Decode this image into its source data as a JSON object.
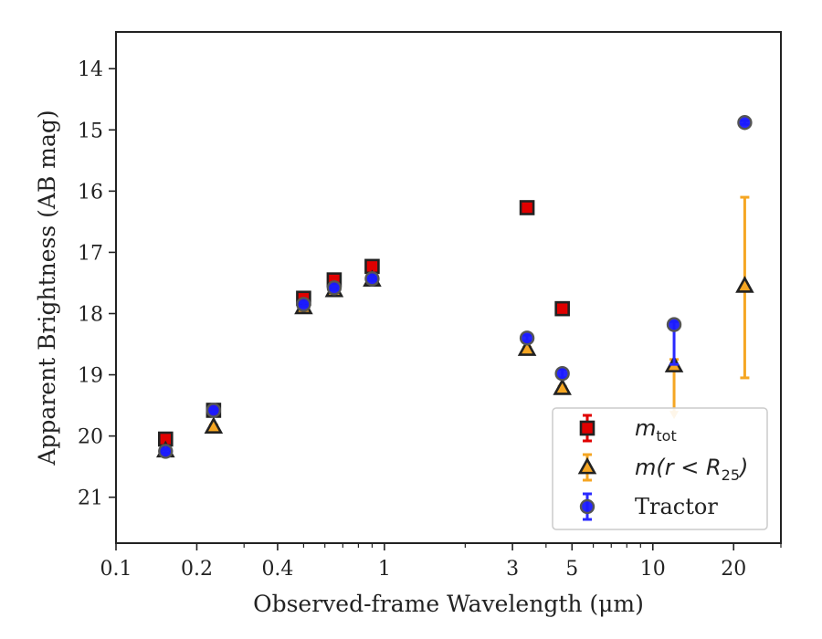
{
  "chart_data": {
    "type": "scatter",
    "title": "",
    "xlabel": "Observed-frame Wavelength (μm)",
    "ylabel": "Apparent Brightness (AB mag)",
    "xscale": "log",
    "xlim": [
      0.1,
      30
    ],
    "ylim": [
      21.75,
      13.4
    ],
    "y_inverted": true,
    "xticks": [
      0.1,
      0.2,
      0.4,
      1,
      3,
      5,
      10,
      20
    ],
    "xtick_labels": [
      "0.1",
      "0.2",
      "0.4",
      "1",
      "3",
      "5",
      "10",
      "20"
    ],
    "yticks": [
      14,
      15,
      16,
      17,
      18,
      19,
      20,
      21
    ],
    "ytick_labels": [
      "14",
      "15",
      "16",
      "17",
      "18",
      "19",
      "20",
      "21"
    ],
    "grid": false,
    "legend_position": "lower-right",
    "series": [
      {
        "name": "m_tot",
        "legend_label": {
          "main": "m",
          "sub": "tot"
        },
        "marker": "square",
        "color": "#e00000",
        "edgecolor": "#222222",
        "points": [
          {
            "x": 0.153,
            "y": 20.05,
            "err": 0.05
          },
          {
            "x": 0.231,
            "y": 19.58,
            "err": 0.04
          },
          {
            "x": 0.5,
            "y": 17.75,
            "err": 0.05
          },
          {
            "x": 0.65,
            "y": 17.45,
            "err": 0.05
          },
          {
            "x": 0.9,
            "y": 17.23,
            "err": 0.04
          },
          {
            "x": 3.4,
            "y": 16.27,
            "err": 0.03
          },
          {
            "x": 4.6,
            "y": 17.92,
            "err": 0.03
          }
        ]
      },
      {
        "name": "m(r < R25)",
        "legend_label": {
          "main": "m(r < R",
          "sub": "25",
          "tail": ")"
        },
        "marker": "triangle",
        "color": "#f5a623",
        "edgecolor": "#222222",
        "points": [
          {
            "x": 0.153,
            "y": 20.24,
            "err": 0.03
          },
          {
            "x": 0.231,
            "y": 19.85,
            "err": 0.03
          },
          {
            "x": 0.5,
            "y": 17.9,
            "err": 0.03
          },
          {
            "x": 0.65,
            "y": 17.62,
            "err": 0.03
          },
          {
            "x": 0.9,
            "y": 17.45,
            "err": 0.03
          },
          {
            "x": 3.4,
            "y": 18.58,
            "err": 0.03
          },
          {
            "x": 4.6,
            "y": 19.22,
            "err": 0.03
          },
          {
            "x": 12.0,
            "y": 18.85,
            "err_low": 0.1,
            "err_high": 0.8,
            "lower_arrow": true
          },
          {
            "x": 22.0,
            "y": 17.55,
            "err_low": 1.45,
            "err_high": 1.5
          }
        ]
      },
      {
        "name": "Tractor",
        "legend_label": {
          "main": "Tractor"
        },
        "marker": "circle",
        "color": "#1a1aff",
        "edgecolor": "#555555",
        "points": [
          {
            "x": 0.153,
            "y": 20.25,
            "err": 0.03
          },
          {
            "x": 0.231,
            "y": 19.58,
            "err": 0.03
          },
          {
            "x": 0.5,
            "y": 17.85,
            "err": 0.03
          },
          {
            "x": 0.65,
            "y": 17.58,
            "err": 0.03
          },
          {
            "x": 0.9,
            "y": 17.43,
            "err": 0.03
          },
          {
            "x": 3.4,
            "y": 18.4,
            "err": 0.05
          },
          {
            "x": 4.6,
            "y": 18.98,
            "err": 0.07
          },
          {
            "x": 12.0,
            "y": 18.18,
            "err_low": 0.05,
            "err_high": 0.65
          },
          {
            "x": 22.0,
            "y": 14.88,
            "err": 0.03
          }
        ]
      }
    ]
  }
}
